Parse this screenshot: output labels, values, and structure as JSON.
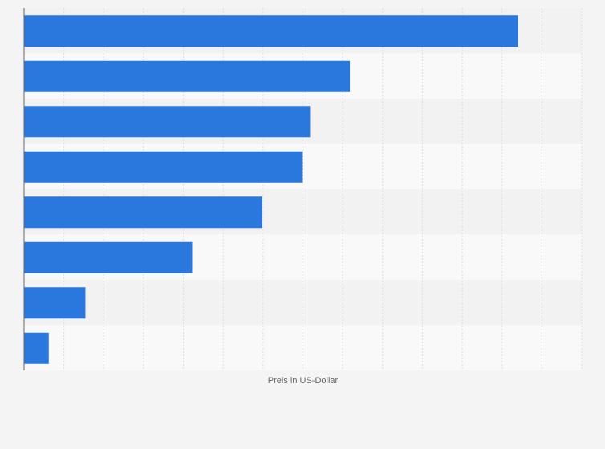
{
  "chart_data": {
    "type": "bar",
    "orientation": "horizontal",
    "title": "",
    "xlabel": "Preis in US-Dollar",
    "ylabel": "",
    "xlim": [
      0,
      14
    ],
    "grid": true,
    "categories": [
      "",
      "",
      "",
      "",
      "",
      "",
      "",
      ""
    ],
    "values": [
      12.4,
      8.18,
      7.18,
      6.98,
      5.98,
      4.22,
      1.54,
      0.62
    ],
    "colors": {
      "bar": "#2a78de",
      "background": "#f4f4f4",
      "band_light": "#f9f9f9",
      "band_dark": "#f2f2f2",
      "gridline": "#dcdcdc",
      "axis": "#666666"
    }
  }
}
